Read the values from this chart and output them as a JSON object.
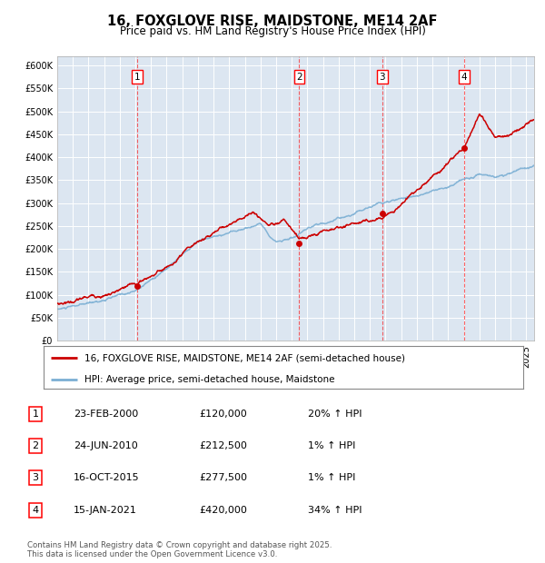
{
  "title": "16, FOXGLOVE RISE, MAIDSTONE, ME14 2AF",
  "subtitle": "Price paid vs. HM Land Registry's House Price Index (HPI)",
  "plot_bg_color": "#dce6f1",
  "red_color": "#cc0000",
  "blue_color": "#7bafd4",
  "ylim": [
    0,
    620000
  ],
  "yticks": [
    0,
    50000,
    100000,
    150000,
    200000,
    250000,
    300000,
    350000,
    400000,
    450000,
    500000,
    550000,
    600000
  ],
  "xlim": [
    1995,
    2025.5
  ],
  "sale_dates": [
    2000.13,
    2010.48,
    2015.79,
    2021.04
  ],
  "sale_prices": [
    120000,
    212500,
    277500,
    420000
  ],
  "sale_labels": [
    "1",
    "2",
    "3",
    "4"
  ],
  "legend_red": "16, FOXGLOVE RISE, MAIDSTONE, ME14 2AF (semi-detached house)",
  "legend_blue": "HPI: Average price, semi-detached house, Maidstone",
  "table_data": [
    [
      "1",
      "23-FEB-2000",
      "£120,000",
      "20% ↑ HPI"
    ],
    [
      "2",
      "24-JUN-2010",
      "£212,500",
      "1% ↑ HPI"
    ],
    [
      "3",
      "16-OCT-2015",
      "£277,500",
      "1% ↑ HPI"
    ],
    [
      "4",
      "15-JAN-2021",
      "£420,000",
      "34% ↑ HPI"
    ]
  ],
  "footer": "Contains HM Land Registry data © Crown copyright and database right 2025.\nThis data is licensed under the Open Government Licence v3.0."
}
